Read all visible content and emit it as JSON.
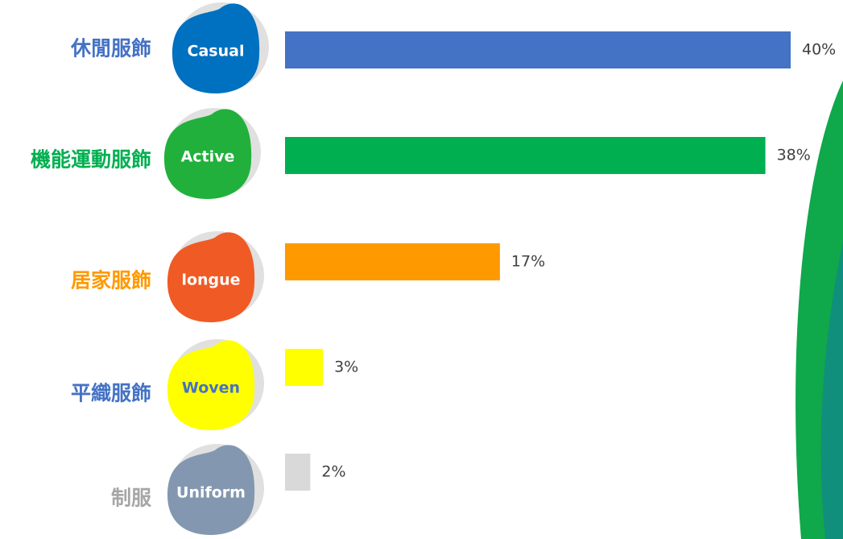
{
  "chart_data": {
    "type": "bar",
    "orientation": "horizontal",
    "categories": [
      "休閒服飾",
      "機能運動服飾",
      "居家服飾",
      "平織服飾",
      "制服"
    ],
    "badges": [
      "Casual",
      "Active",
      "longue",
      "Woven",
      "Uniform"
    ],
    "values": [
      40,
      38,
      17,
      3,
      2
    ],
    "value_labels": [
      "40%",
      "38%",
      "17%",
      "3%",
      "2%"
    ],
    "colors": [
      "#4472c4",
      "#00b050",
      "#ff9900",
      "#ffff00",
      "#d9d9d9"
    ],
    "label_colors": [
      "#4472c4",
      "#00b050",
      "#ff9900",
      "#4472c4",
      "#a6a6a6"
    ],
    "badge_colors": [
      "#0070c0",
      "#22b03c",
      "#f05a24",
      "#ffff00",
      "#8497b0"
    ],
    "badge_text_colors": [
      "#ffffff",
      "#ffffff",
      "#ffffff",
      "#4472c4",
      "#ffffff"
    ]
  }
}
